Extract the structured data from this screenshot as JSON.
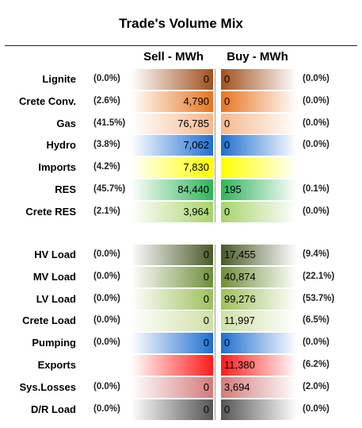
{
  "chart_data": {
    "type": "table",
    "title": "Trade's Volume Mix",
    "columns": [
      "Sell - MWh",
      "Buy - MWh"
    ],
    "rows": [
      {
        "category": "Lignite",
        "sell": "0",
        "sell_pct": "(0.0%)",
        "buy": "0",
        "buy_pct": "(0.0%)",
        "color": "#a0501e"
      },
      {
        "category": "Crete Conv.",
        "sell": "4,790",
        "sell_pct": "(2.6%)",
        "buy": "0",
        "buy_pct": "(0.0%)",
        "color": "#e8741e"
      },
      {
        "category": "Gas",
        "sell": "76,785",
        "sell_pct": "(41.5%)",
        "buy": "0",
        "buy_pct": "(0.0%)",
        "color": "#f6b88c"
      },
      {
        "category": "Hydro",
        "sell": "7,062",
        "sell_pct": "(3.8%)",
        "buy": "0",
        "buy_pct": "(0.0%)",
        "color": "#1f6fd0"
      },
      {
        "category": "Imports",
        "sell": "7,830",
        "sell_pct": "(4.2%)",
        "buy": "",
        "buy_pct": "",
        "color": "#ffff00"
      },
      {
        "category": "RES",
        "sell": "84,440",
        "sell_pct": "(45.7%)",
        "buy": "195",
        "buy_pct": "(0.1%)",
        "color": "#2fb45a"
      },
      {
        "category": "Crete RES",
        "sell": "3,964",
        "sell_pct": "(2.1%)",
        "buy": "0",
        "buy_pct": "(0.0%)",
        "color": "#a6d46a"
      },
      {
        "category": "HV Load",
        "sell": "0",
        "sell_pct": "(0.0%)",
        "buy": "17,455",
        "buy_pct": "(9.4%)",
        "color": "#4a5a2a"
      },
      {
        "category": "MV Load",
        "sell": "0",
        "sell_pct": "(0.0%)",
        "buy": "40,874",
        "buy_pct": "(22.1%)",
        "color": "#6f8e3a"
      },
      {
        "category": "LV Load",
        "sell": "0",
        "sell_pct": "(0.0%)",
        "buy": "99,276",
        "buy_pct": "(53.7%)",
        "color": "#9cc05a"
      },
      {
        "category": "Crete Load",
        "sell": "0",
        "sell_pct": "(0.0%)",
        "buy": "11,997",
        "buy_pct": "(6.5%)",
        "color": "#cfe0a6"
      },
      {
        "category": "Pumping",
        "sell": "0",
        "sell_pct": "(0.0%)",
        "buy": "0",
        "buy_pct": "(0.0%)",
        "color": "#1f6fd0"
      },
      {
        "category": "Exports",
        "sell": "",
        "sell_pct": "",
        "buy": "11,380",
        "buy_pct": "(6.2%)",
        "color": "#ff1a1a"
      },
      {
        "category": "Sys.Losses",
        "sell": "0",
        "sell_pct": "(0.0%)",
        "buy": "3,694",
        "buy_pct": "(2.0%)",
        "color": "#d47a7a"
      },
      {
        "category": "D/R Load",
        "sell": "0",
        "sell_pct": "(0.0%)",
        "buy": "0",
        "buy_pct": "(0.0%)",
        "color": "#555555"
      }
    ]
  }
}
